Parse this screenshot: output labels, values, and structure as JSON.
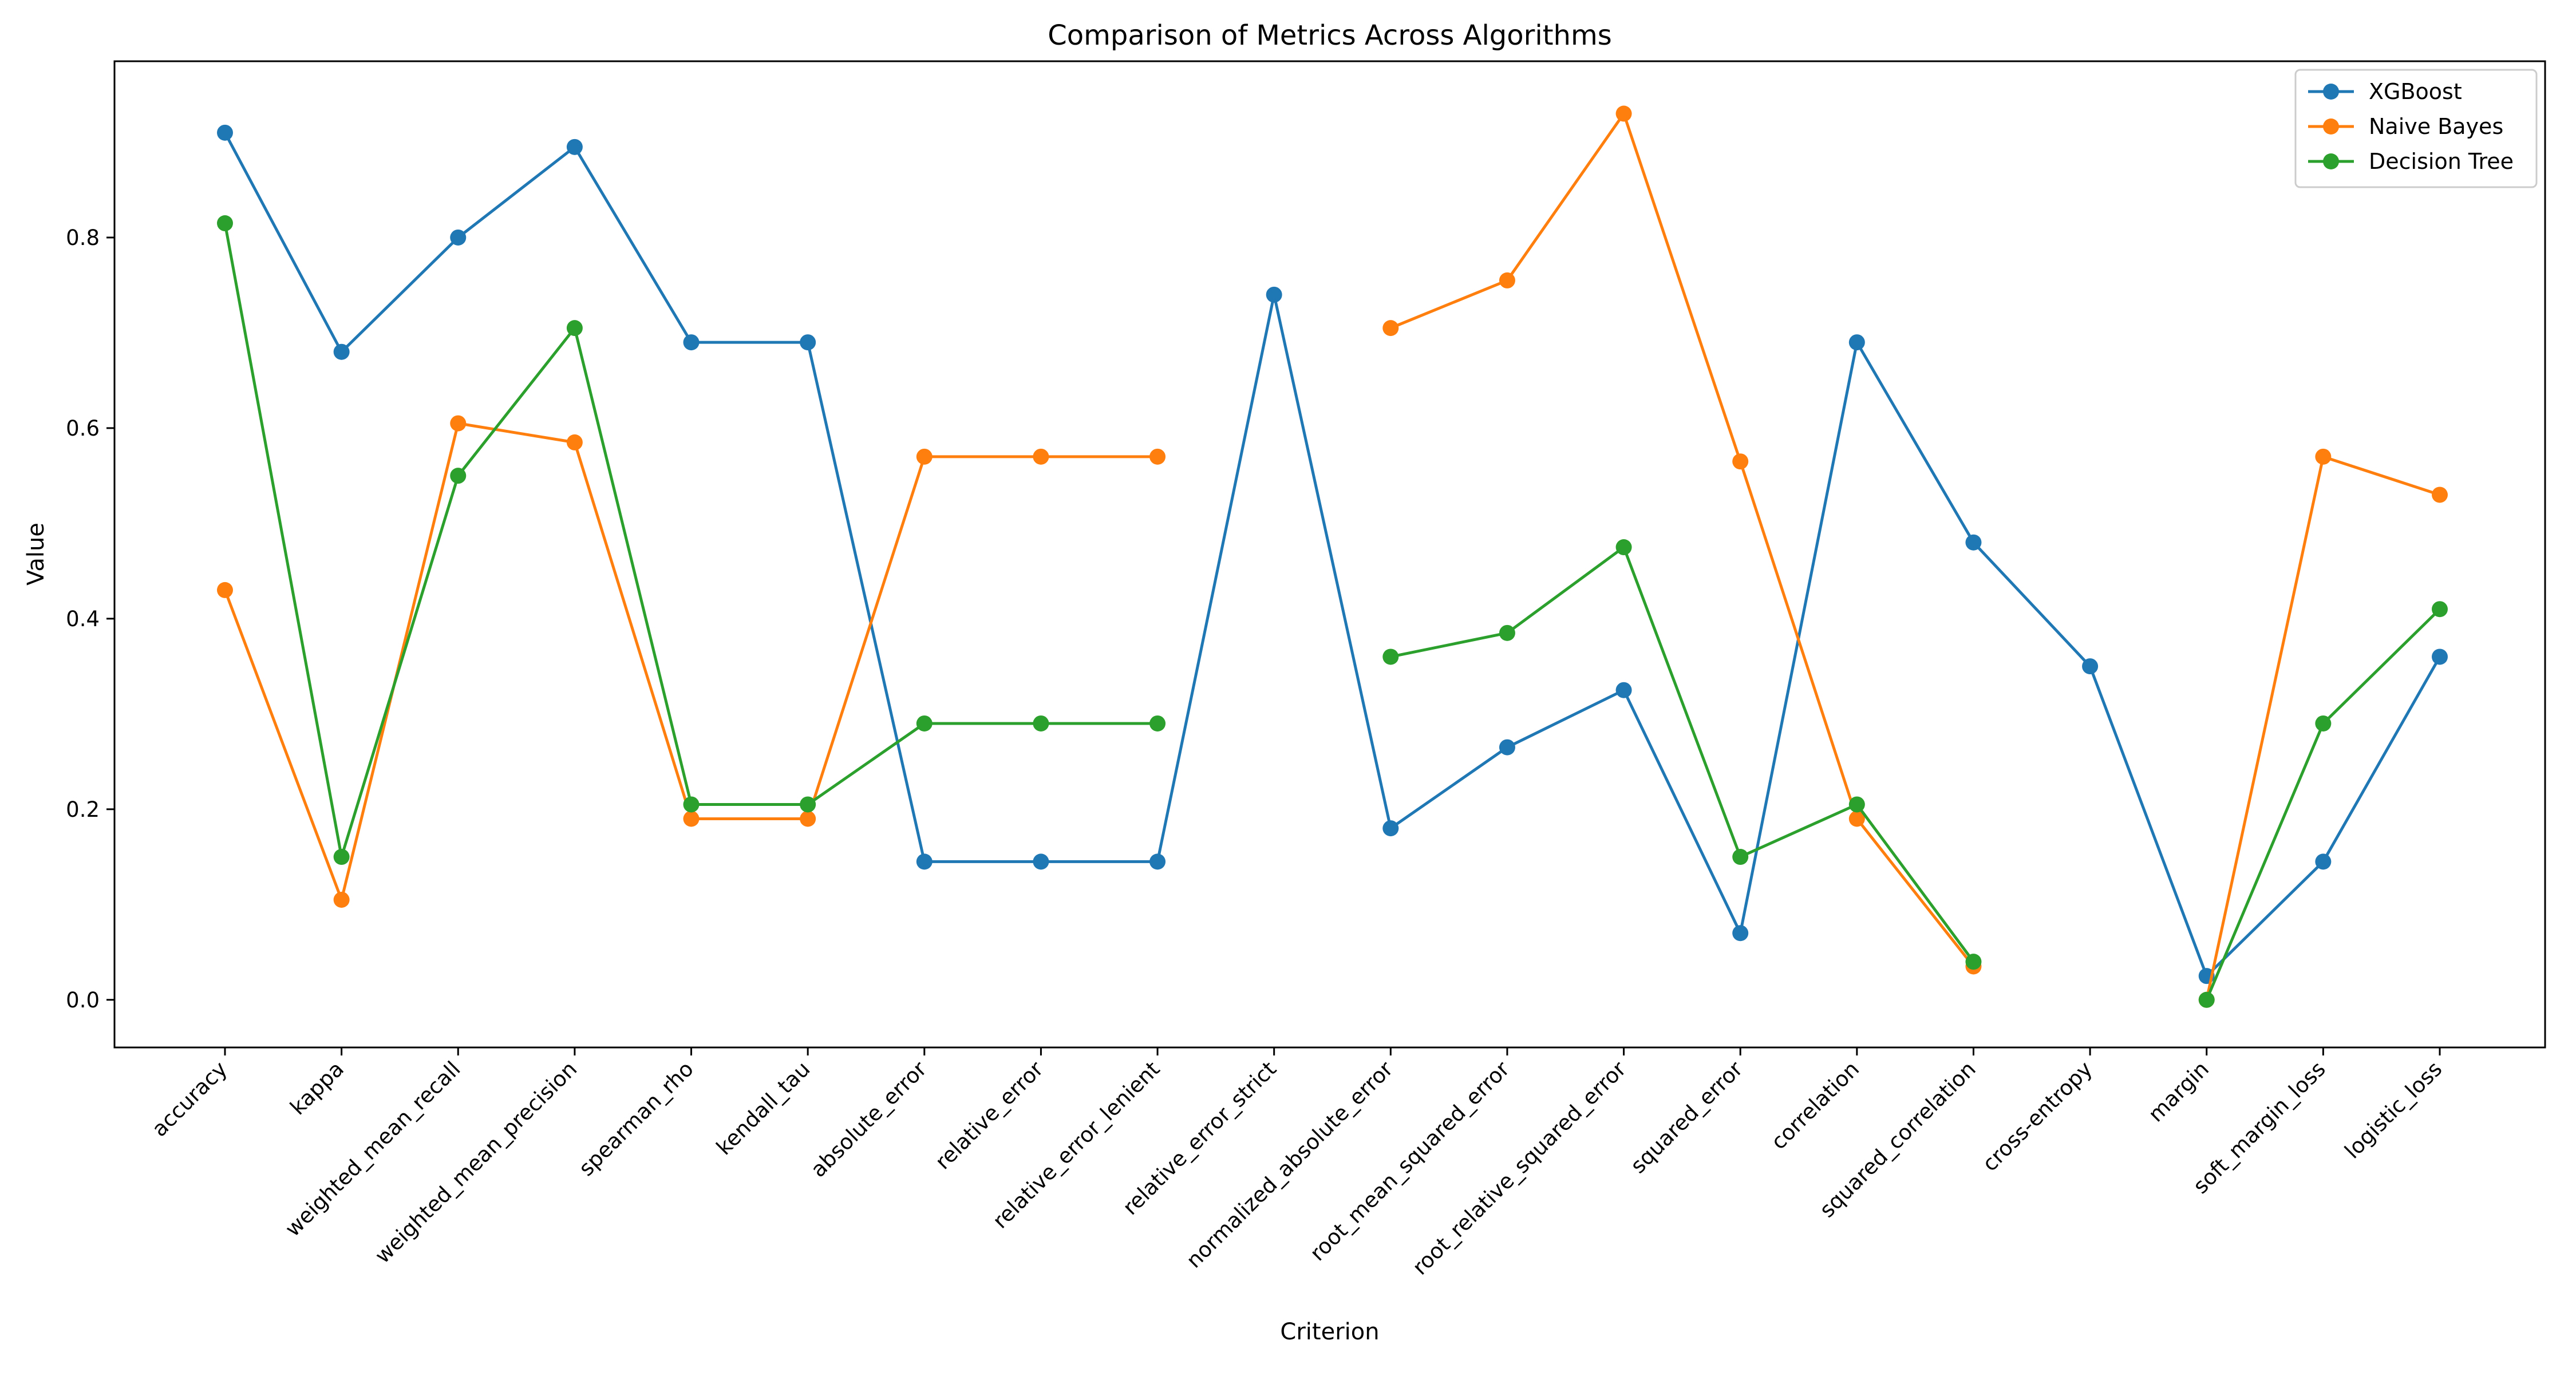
{
  "chart_data": {
    "type": "line",
    "title": "Comparison of Metrics Across Algorithms",
    "xlabel": "Criterion",
    "ylabel": "Value",
    "ylim": [
      -0.05,
      0.985
    ],
    "yticks": [
      0.0,
      0.2,
      0.4,
      0.6,
      0.8
    ],
    "ytick_labels": [
      "0.0",
      "0.2",
      "0.4",
      "0.6",
      "0.8"
    ],
    "grid": false,
    "legend_position": "top-right",
    "categories": [
      "accuracy",
      "kappa",
      "weighted_mean_recall",
      "weighted_mean_precision",
      "spearman_rho",
      "kendall_tau",
      "absolute_error",
      "relative_error",
      "relative_error_lenient",
      "relative_error_strict",
      "normalized_absolute_error",
      "root_mean_squared_error",
      "root_relative_squared_error",
      "squared_error",
      "correlation",
      "squared_correlation",
      "cross-entropy",
      "margin",
      "soft_margin_loss",
      "logistic_loss"
    ],
    "series": [
      {
        "name": "XGBoost",
        "color": "#1f77b4",
        "values": [
          0.91,
          0.68,
          0.8,
          0.895,
          0.69,
          0.69,
          0.145,
          0.145,
          0.145,
          0.74,
          0.18,
          0.265,
          0.325,
          0.07,
          0.69,
          0.48,
          0.35,
          0.025,
          0.145,
          0.36
        ]
      },
      {
        "name": "Naive Bayes",
        "color": "#ff7f0e",
        "values": [
          0.43,
          0.105,
          0.605,
          0.585,
          0.19,
          0.19,
          0.57,
          0.57,
          0.57,
          null,
          0.705,
          0.755,
          0.93,
          0.565,
          0.19,
          0.035,
          null,
          0.0,
          0.57,
          0.53
        ]
      },
      {
        "name": "Decision Tree",
        "color": "#2ca02c",
        "values": [
          0.815,
          0.15,
          0.55,
          0.705,
          0.205,
          0.205,
          0.29,
          0.29,
          0.29,
          null,
          0.36,
          0.385,
          0.475,
          0.15,
          0.205,
          0.04,
          null,
          0.0,
          0.29,
          0.41
        ]
      }
    ]
  }
}
